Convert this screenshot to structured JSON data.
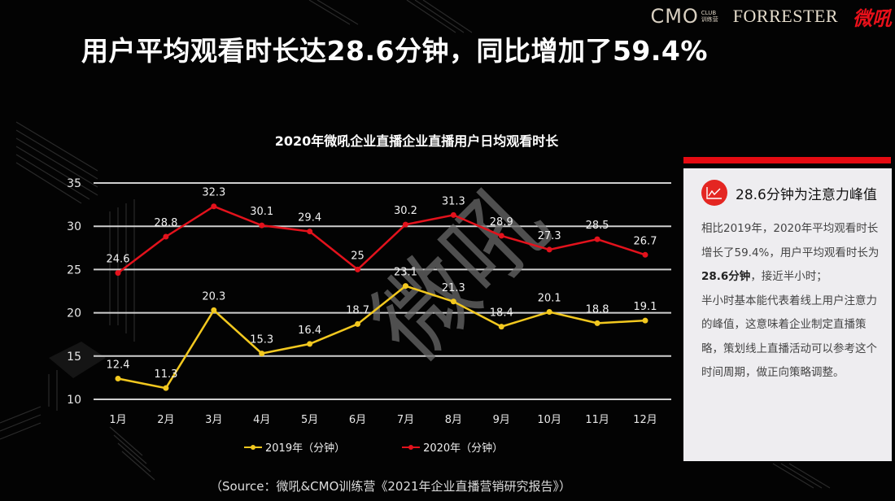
{
  "header": {
    "logos": [
      "CMO",
      "FORRESTER",
      "微吼"
    ],
    "logo_cmo_sub": [
      "CLUB",
      "训练营"
    ],
    "headline": "用户平均观看时长达28.6分钟，同比增加了59.4%"
  },
  "chart": {
    "title": "2020年微吼企业直播企业直播用户日均观看时长",
    "legend": [
      {
        "label": "2019年（分钟）",
        "color": "#f2c81f"
      },
      {
        "label": "2020年（分钟）",
        "color": "#e3121c"
      }
    ]
  },
  "chart_data": {
    "type": "line",
    "title": "2020年微吼企业直播企业直播用户日均观看时长",
    "xlabel": "",
    "ylabel": "",
    "categories": [
      "1月",
      "2月",
      "3月",
      "4月",
      "5月",
      "6月",
      "7月",
      "8月",
      "9月",
      "10月",
      "11月",
      "12月"
    ],
    "series": [
      {
        "name": "2019年（分钟）",
        "color": "#f2c81f",
        "values": [
          12.4,
          11.3,
          20.3,
          15.3,
          16.4,
          18.7,
          23.1,
          21.3,
          18.4,
          20.1,
          18.8,
          19.1
        ]
      },
      {
        "name": "2020年（分钟）",
        "color": "#e3121c",
        "values": [
          24.6,
          28.8,
          32.3,
          30.1,
          29.4,
          25,
          30.2,
          31.3,
          28.9,
          27.3,
          28.5,
          26.7
        ]
      }
    ],
    "yticks": [
      10,
      15,
      20,
      25,
      30,
      35
    ],
    "ylim": [
      10,
      35
    ],
    "grid": true,
    "data_labels": true,
    "legend_position": "bottom"
  },
  "panel": {
    "heading": "28.6分钟为注意力峰值",
    "icon": "line-chart-icon",
    "accent": "#e60b12",
    "para1_pre": "相比2019年，2020年平均观看时长增长了59.4%，用户平均观看时长为",
    "para1_bold": "28.6分钟",
    "para1_post": "，接近半小时；",
    "para2": "半小时基本能代表着线上用户注意力的峰值，这意味着企业制定直播策略，策划线上直播活动可以参考这个时间周期，做正向策略调整。"
  },
  "footer": {
    "source": "（Source：微吼&CMO训练营《2021年企业直播营销研究报告》）"
  },
  "watermark": "微吼"
}
